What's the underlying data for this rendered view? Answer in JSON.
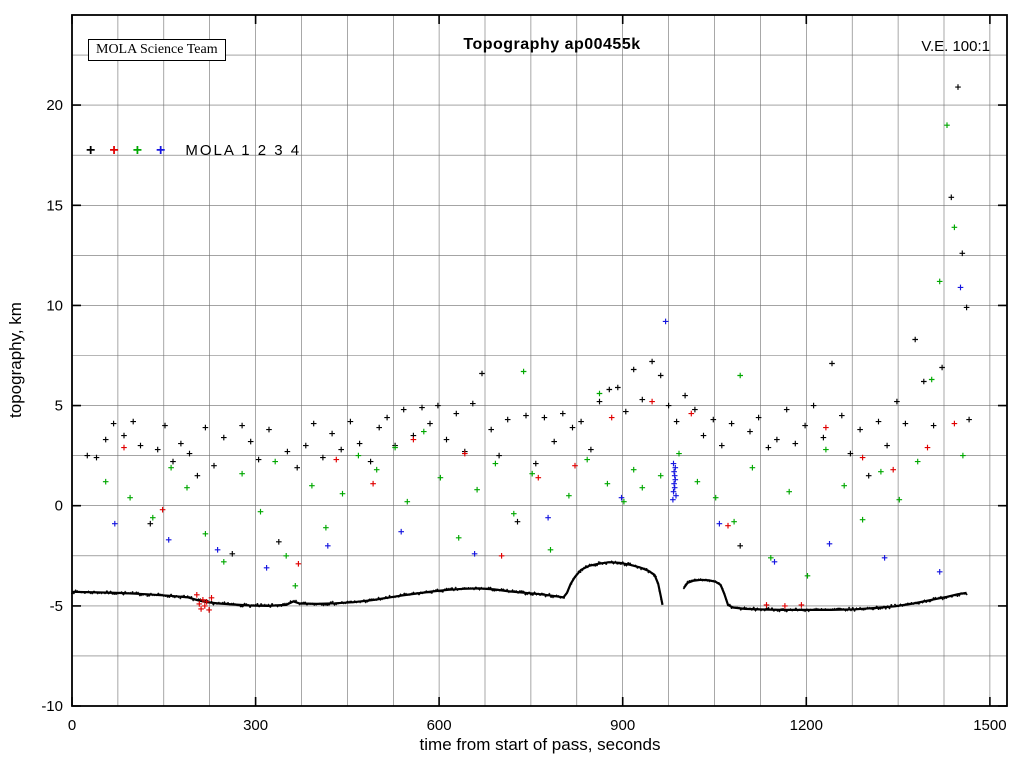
{
  "header": {
    "credit": "MOLA Science Team",
    "title": "Topography ap00455k",
    "ve": "V.E. 100:1"
  },
  "legend": {
    "label": "MOLA 1 2 3 4",
    "entries": [
      {
        "name": "MOLA 1",
        "color": "#000000"
      },
      {
        "name": "MOLA 2",
        "color": "#e00000"
      },
      {
        "name": "MOLA 3",
        "color": "#00a800"
      },
      {
        "name": "MOLA 4",
        "color": "#1515e0"
      }
    ]
  },
  "chart_data": {
    "type": "scatter",
    "title": "Topography ap00455k",
    "xlabel": "time from start of pass, seconds",
    "ylabel": "topography, km",
    "xlim": [
      0,
      1528
    ],
    "ylim": [
      -10,
      24.5
    ],
    "xticks": [
      0,
      300,
      600,
      900,
      1200,
      1500
    ],
    "yticks": [
      -10,
      -5,
      0,
      5,
      10,
      15,
      20
    ],
    "grid": {
      "x_step": 75,
      "y_step": 2.5
    },
    "marker": "plus",
    "ground_track": {
      "color": "#000000",
      "segments": [
        [
          [
            0,
            -4.3
          ],
          [
            40,
            -4.33
          ],
          [
            80,
            -4.36
          ],
          [
            120,
            -4.42
          ],
          [
            160,
            -4.5
          ],
          [
            190,
            -4.58
          ],
          [
            205,
            -4.72
          ],
          [
            220,
            -4.82
          ],
          [
            240,
            -4.88
          ],
          [
            265,
            -4.93
          ],
          [
            290,
            -4.98
          ],
          [
            320,
            -5.0
          ],
          [
            350,
            -4.95
          ],
          [
            362,
            -4.78
          ],
          [
            372,
            -4.88
          ],
          [
            400,
            -4.9
          ],
          [
            430,
            -4.87
          ],
          [
            460,
            -4.82
          ],
          [
            490,
            -4.72
          ],
          [
            515,
            -4.6
          ],
          [
            540,
            -4.48
          ],
          [
            565,
            -4.38
          ],
          [
            590,
            -4.28
          ],
          [
            615,
            -4.2
          ],
          [
            640,
            -4.15
          ],
          [
            665,
            -4.13
          ],
          [
            690,
            -4.18
          ],
          [
            715,
            -4.28
          ],
          [
            740,
            -4.35
          ],
          [
            765,
            -4.42
          ],
          [
            790,
            -4.52
          ],
          [
            803,
            -4.58
          ],
          [
            809,
            -4.35
          ],
          [
            815,
            -3.9
          ],
          [
            822,
            -3.55
          ],
          [
            832,
            -3.2
          ],
          [
            845,
            -3.0
          ],
          [
            860,
            -2.9
          ],
          [
            878,
            -2.82
          ],
          [
            895,
            -2.85
          ],
          [
            912,
            -2.95
          ],
          [
            928,
            -3.08
          ],
          [
            942,
            -3.25
          ],
          [
            952,
            -3.45
          ],
          [
            958,
            -3.9
          ],
          [
            962,
            -4.5
          ],
          [
            965,
            -4.95
          ]
        ],
        [
          [
            1000,
            -4.1
          ],
          [
            1006,
            -3.85
          ],
          [
            1015,
            -3.75
          ],
          [
            1028,
            -3.7
          ],
          [
            1042,
            -3.73
          ],
          [
            1052,
            -3.8
          ],
          [
            1060,
            -3.95
          ],
          [
            1066,
            -4.4
          ],
          [
            1072,
            -4.95
          ],
          [
            1080,
            -5.08
          ],
          [
            1100,
            -5.15
          ],
          [
            1130,
            -5.18
          ],
          [
            1160,
            -5.2
          ],
          [
            1200,
            -5.2
          ],
          [
            1240,
            -5.2
          ],
          [
            1280,
            -5.17
          ],
          [
            1315,
            -5.1
          ],
          [
            1345,
            -5.02
          ],
          [
            1375,
            -4.88
          ],
          [
            1405,
            -4.7
          ],
          [
            1430,
            -4.55
          ],
          [
            1448,
            -4.42
          ],
          [
            1462,
            -4.35
          ]
        ]
      ]
    },
    "series": [
      {
        "name": "MOLA 1",
        "color": "#000000",
        "points": [
          [
            25,
            2.5
          ],
          [
            40,
            2.4
          ],
          [
            55,
            3.3
          ],
          [
            68,
            4.1
          ],
          [
            85,
            3.5
          ],
          [
            100,
            4.2
          ],
          [
            112,
            3.0
          ],
          [
            128,
            -0.9
          ],
          [
            140,
            2.8
          ],
          [
            152,
            4.0
          ],
          [
            165,
            2.2
          ],
          [
            178,
            3.1
          ],
          [
            192,
            2.6
          ],
          [
            205,
            1.5
          ],
          [
            218,
            3.9
          ],
          [
            232,
            2.0
          ],
          [
            248,
            3.4
          ],
          [
            262,
            -2.4
          ],
          [
            278,
            4.0
          ],
          [
            292,
            3.2
          ],
          [
            305,
            2.3
          ],
          [
            322,
            3.8
          ],
          [
            338,
            -1.8
          ],
          [
            352,
            2.7
          ],
          [
            368,
            1.9
          ],
          [
            382,
            3.0
          ],
          [
            395,
            4.1
          ],
          [
            410,
            2.4
          ],
          [
            425,
            3.6
          ],
          [
            440,
            2.8
          ],
          [
            455,
            4.2
          ],
          [
            470,
            3.1
          ],
          [
            488,
            2.2
          ],
          [
            502,
            3.9
          ],
          [
            515,
            4.4
          ],
          [
            528,
            3.0
          ],
          [
            542,
            4.8
          ],
          [
            558,
            3.5
          ],
          [
            572,
            4.9
          ],
          [
            585,
            4.1
          ],
          [
            598,
            5.0
          ],
          [
            612,
            3.3
          ],
          [
            628,
            4.6
          ],
          [
            642,
            2.7
          ],
          [
            655,
            5.1
          ],
          [
            670,
            6.6
          ],
          [
            685,
            3.8
          ],
          [
            698,
            2.5
          ],
          [
            712,
            4.3
          ],
          [
            728,
            -0.8
          ],
          [
            742,
            4.5
          ],
          [
            758,
            2.1
          ],
          [
            772,
            4.4
          ],
          [
            788,
            3.2
          ],
          [
            802,
            4.6
          ],
          [
            818,
            3.9
          ],
          [
            832,
            4.2
          ],
          [
            848,
            2.8
          ],
          [
            862,
            5.2
          ],
          [
            878,
            5.8
          ],
          [
            892,
            5.9
          ],
          [
            905,
            4.7
          ],
          [
            918,
            6.8
          ],
          [
            932,
            5.3
          ],
          [
            948,
            7.2
          ],
          [
            962,
            6.5
          ],
          [
            975,
            5.0
          ],
          [
            988,
            4.2
          ],
          [
            1002,
            5.5
          ],
          [
            1018,
            4.8
          ],
          [
            1032,
            3.5
          ],
          [
            1048,
            4.3
          ],
          [
            1062,
            3.0
          ],
          [
            1078,
            4.1
          ],
          [
            1092,
            -2.0
          ],
          [
            1108,
            3.7
          ],
          [
            1122,
            4.4
          ],
          [
            1138,
            2.9
          ],
          [
            1152,
            3.3
          ],
          [
            1168,
            4.8
          ],
          [
            1182,
            3.1
          ],
          [
            1198,
            4.0
          ],
          [
            1212,
            5.0
          ],
          [
            1228,
            3.4
          ],
          [
            1242,
            7.1
          ],
          [
            1258,
            4.5
          ],
          [
            1272,
            2.6
          ],
          [
            1288,
            3.8
          ],
          [
            1302,
            1.5
          ],
          [
            1318,
            4.2
          ],
          [
            1332,
            3.0
          ],
          [
            1348,
            5.2
          ],
          [
            1362,
            4.1
          ],
          [
            1378,
            8.3
          ],
          [
            1392,
            6.2
          ],
          [
            1408,
            4.0
          ],
          [
            1422,
            6.9
          ],
          [
            1437,
            15.4
          ],
          [
            1448,
            20.9
          ],
          [
            1455,
            12.6
          ],
          [
            1462,
            9.9
          ],
          [
            1466,
            4.3
          ]
        ]
      },
      {
        "name": "MOLA 2",
        "color": "#e00000",
        "points": [
          [
            85,
            2.9
          ],
          [
            148,
            -0.2
          ],
          [
            204,
            -4.45
          ],
          [
            208,
            -4.9
          ],
          [
            211,
            -5.15
          ],
          [
            214,
            -4.7
          ],
          [
            217,
            -5.0
          ],
          [
            220,
            -4.8
          ],
          [
            224,
            -5.2
          ],
          [
            228,
            -4.6
          ],
          [
            370,
            -2.9
          ],
          [
            432,
            2.3
          ],
          [
            492,
            1.1
          ],
          [
            558,
            3.3
          ],
          [
            642,
            2.6
          ],
          [
            702,
            -2.5
          ],
          [
            762,
            1.4
          ],
          [
            822,
            2.0
          ],
          [
            882,
            4.4
          ],
          [
            948,
            5.2
          ],
          [
            1012,
            4.6
          ],
          [
            1072,
            -1.0
          ],
          [
            1135,
            -4.95
          ],
          [
            1165,
            -5.0
          ],
          [
            1192,
            -4.95
          ],
          [
            1232,
            3.9
          ],
          [
            1292,
            2.4
          ],
          [
            1342,
            1.8
          ],
          [
            1398,
            2.9
          ],
          [
            1442,
            4.1
          ]
        ]
      },
      {
        "name": "MOLA 3",
        "color": "#00a800",
        "points": [
          [
            55,
            1.2
          ],
          [
            95,
            0.4
          ],
          [
            132,
            -0.6
          ],
          [
            162,
            1.9
          ],
          [
            188,
            0.9
          ],
          [
            218,
            -1.4
          ],
          [
            248,
            -2.8
          ],
          [
            278,
            1.6
          ],
          [
            308,
            -0.3
          ],
          [
            332,
            2.2
          ],
          [
            350,
            -2.5
          ],
          [
            365,
            -4.0
          ],
          [
            392,
            1.0
          ],
          [
            415,
            -1.1
          ],
          [
            442,
            0.6
          ],
          [
            468,
            2.5
          ],
          [
            498,
            1.8
          ],
          [
            528,
            2.9
          ],
          [
            548,
            0.2
          ],
          [
            575,
            3.7
          ],
          [
            602,
            1.4
          ],
          [
            632,
            -1.6
          ],
          [
            662,
            0.8
          ],
          [
            692,
            2.1
          ],
          [
            722,
            -0.4
          ],
          [
            738,
            6.7
          ],
          [
            752,
            1.6
          ],
          [
            782,
            -2.2
          ],
          [
            812,
            0.5
          ],
          [
            842,
            2.3
          ],
          [
            862,
            5.6
          ],
          [
            875,
            1.1
          ],
          [
            902,
            0.2
          ],
          [
            918,
            1.8
          ],
          [
            932,
            0.9
          ],
          [
            962,
            1.5
          ],
          [
            992,
            2.6
          ],
          [
            1022,
            1.2
          ],
          [
            1052,
            0.4
          ],
          [
            1082,
            -0.8
          ],
          [
            1092,
            6.5
          ],
          [
            1112,
            1.9
          ],
          [
            1142,
            -2.6
          ],
          [
            1172,
            0.7
          ],
          [
            1202,
            -3.5
          ],
          [
            1232,
            2.8
          ],
          [
            1262,
            1.0
          ],
          [
            1292,
            -0.7
          ],
          [
            1322,
            1.7
          ],
          [
            1352,
            0.3
          ],
          [
            1382,
            2.2
          ],
          [
            1405,
            6.3
          ],
          [
            1418,
            11.2
          ],
          [
            1430,
            19.0
          ],
          [
            1442,
            13.9
          ],
          [
            1456,
            2.5
          ]
        ]
      },
      {
        "name": "MOLA 4",
        "color": "#1515e0",
        "points": [
          [
            70,
            -0.9
          ],
          [
            158,
            -1.7
          ],
          [
            238,
            -2.2
          ],
          [
            318,
            -3.1
          ],
          [
            418,
            -2.0
          ],
          [
            538,
            -1.3
          ],
          [
            658,
            -2.4
          ],
          [
            778,
            -0.6
          ],
          [
            898,
            0.4
          ],
          [
            970,
            9.2
          ],
          [
            982,
            0.3
          ],
          [
            983,
            0.7
          ],
          [
            984,
            1.1
          ],
          [
            985,
            1.5
          ],
          [
            986,
            1.9
          ],
          [
            987,
            0.5
          ],
          [
            984,
            1.7
          ],
          [
            986,
            1.3
          ],
          [
            983,
            2.1
          ],
          [
            985,
            0.9
          ],
          [
            1058,
            -0.9
          ],
          [
            1148,
            -2.8
          ],
          [
            1238,
            -1.9
          ],
          [
            1328,
            -2.6
          ],
          [
            1418,
            -3.3
          ],
          [
            1452,
            10.9
          ]
        ]
      }
    ]
  }
}
